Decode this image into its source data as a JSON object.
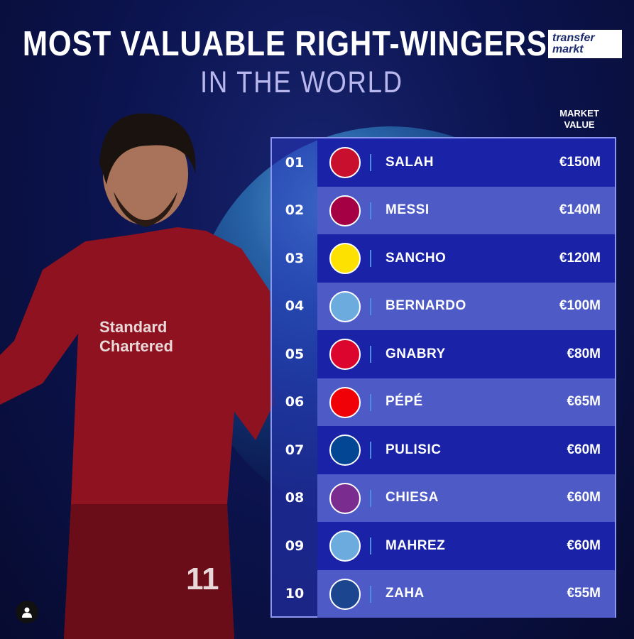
{
  "header": {
    "title": "MOST VALUABLE RIGHT-WINGERS",
    "subtitle": "IN THE WORLD",
    "logo_line1": "transfer",
    "logo_line2": "markt"
  },
  "table": {
    "value_header": "MARKET VALUE",
    "rows": [
      {
        "rank": "01",
        "club_icon": "liverpool-crest",
        "color": "#c8102e",
        "name": "SALAH",
        "value": "€150M"
      },
      {
        "rank": "02",
        "club_icon": "barcelona-crest",
        "color": "#a50044",
        "name": "MESSI",
        "value": "€140M"
      },
      {
        "rank": "03",
        "club_icon": "dortmund-crest",
        "color": "#fde100",
        "name": "SANCHO",
        "value": "€120M"
      },
      {
        "rank": "04",
        "club_icon": "man-city-crest",
        "color": "#6cabdd",
        "name": "BERNARDO",
        "value": "€100M"
      },
      {
        "rank": "05",
        "club_icon": "bayern-crest",
        "color": "#dc052d",
        "name": "GNABRY",
        "value": "€80M"
      },
      {
        "rank": "06",
        "club_icon": "arsenal-crest",
        "color": "#ef0107",
        "name": "PÉPÉ",
        "value": "€65M"
      },
      {
        "rank": "07",
        "club_icon": "chelsea-crest",
        "color": "#034694",
        "name": "PULISIC",
        "value": "€60M"
      },
      {
        "rank": "08",
        "club_icon": "fiorentina-crest",
        "color": "#7b2c8f",
        "name": "CHIESA",
        "value": "€60M"
      },
      {
        "rank": "09",
        "club_icon": "man-city-crest",
        "color": "#6cabdd",
        "name": "MAHREZ",
        "value": "€60M"
      },
      {
        "rank": "10",
        "club_icon": "crystal-palace-crest",
        "color": "#1b458f",
        "name": "ZAHA",
        "value": "€55M"
      }
    ]
  },
  "colors": {
    "row_dark": "#1a23a8",
    "row_light": "#4e5bc6",
    "background": "#0c1450"
  }
}
